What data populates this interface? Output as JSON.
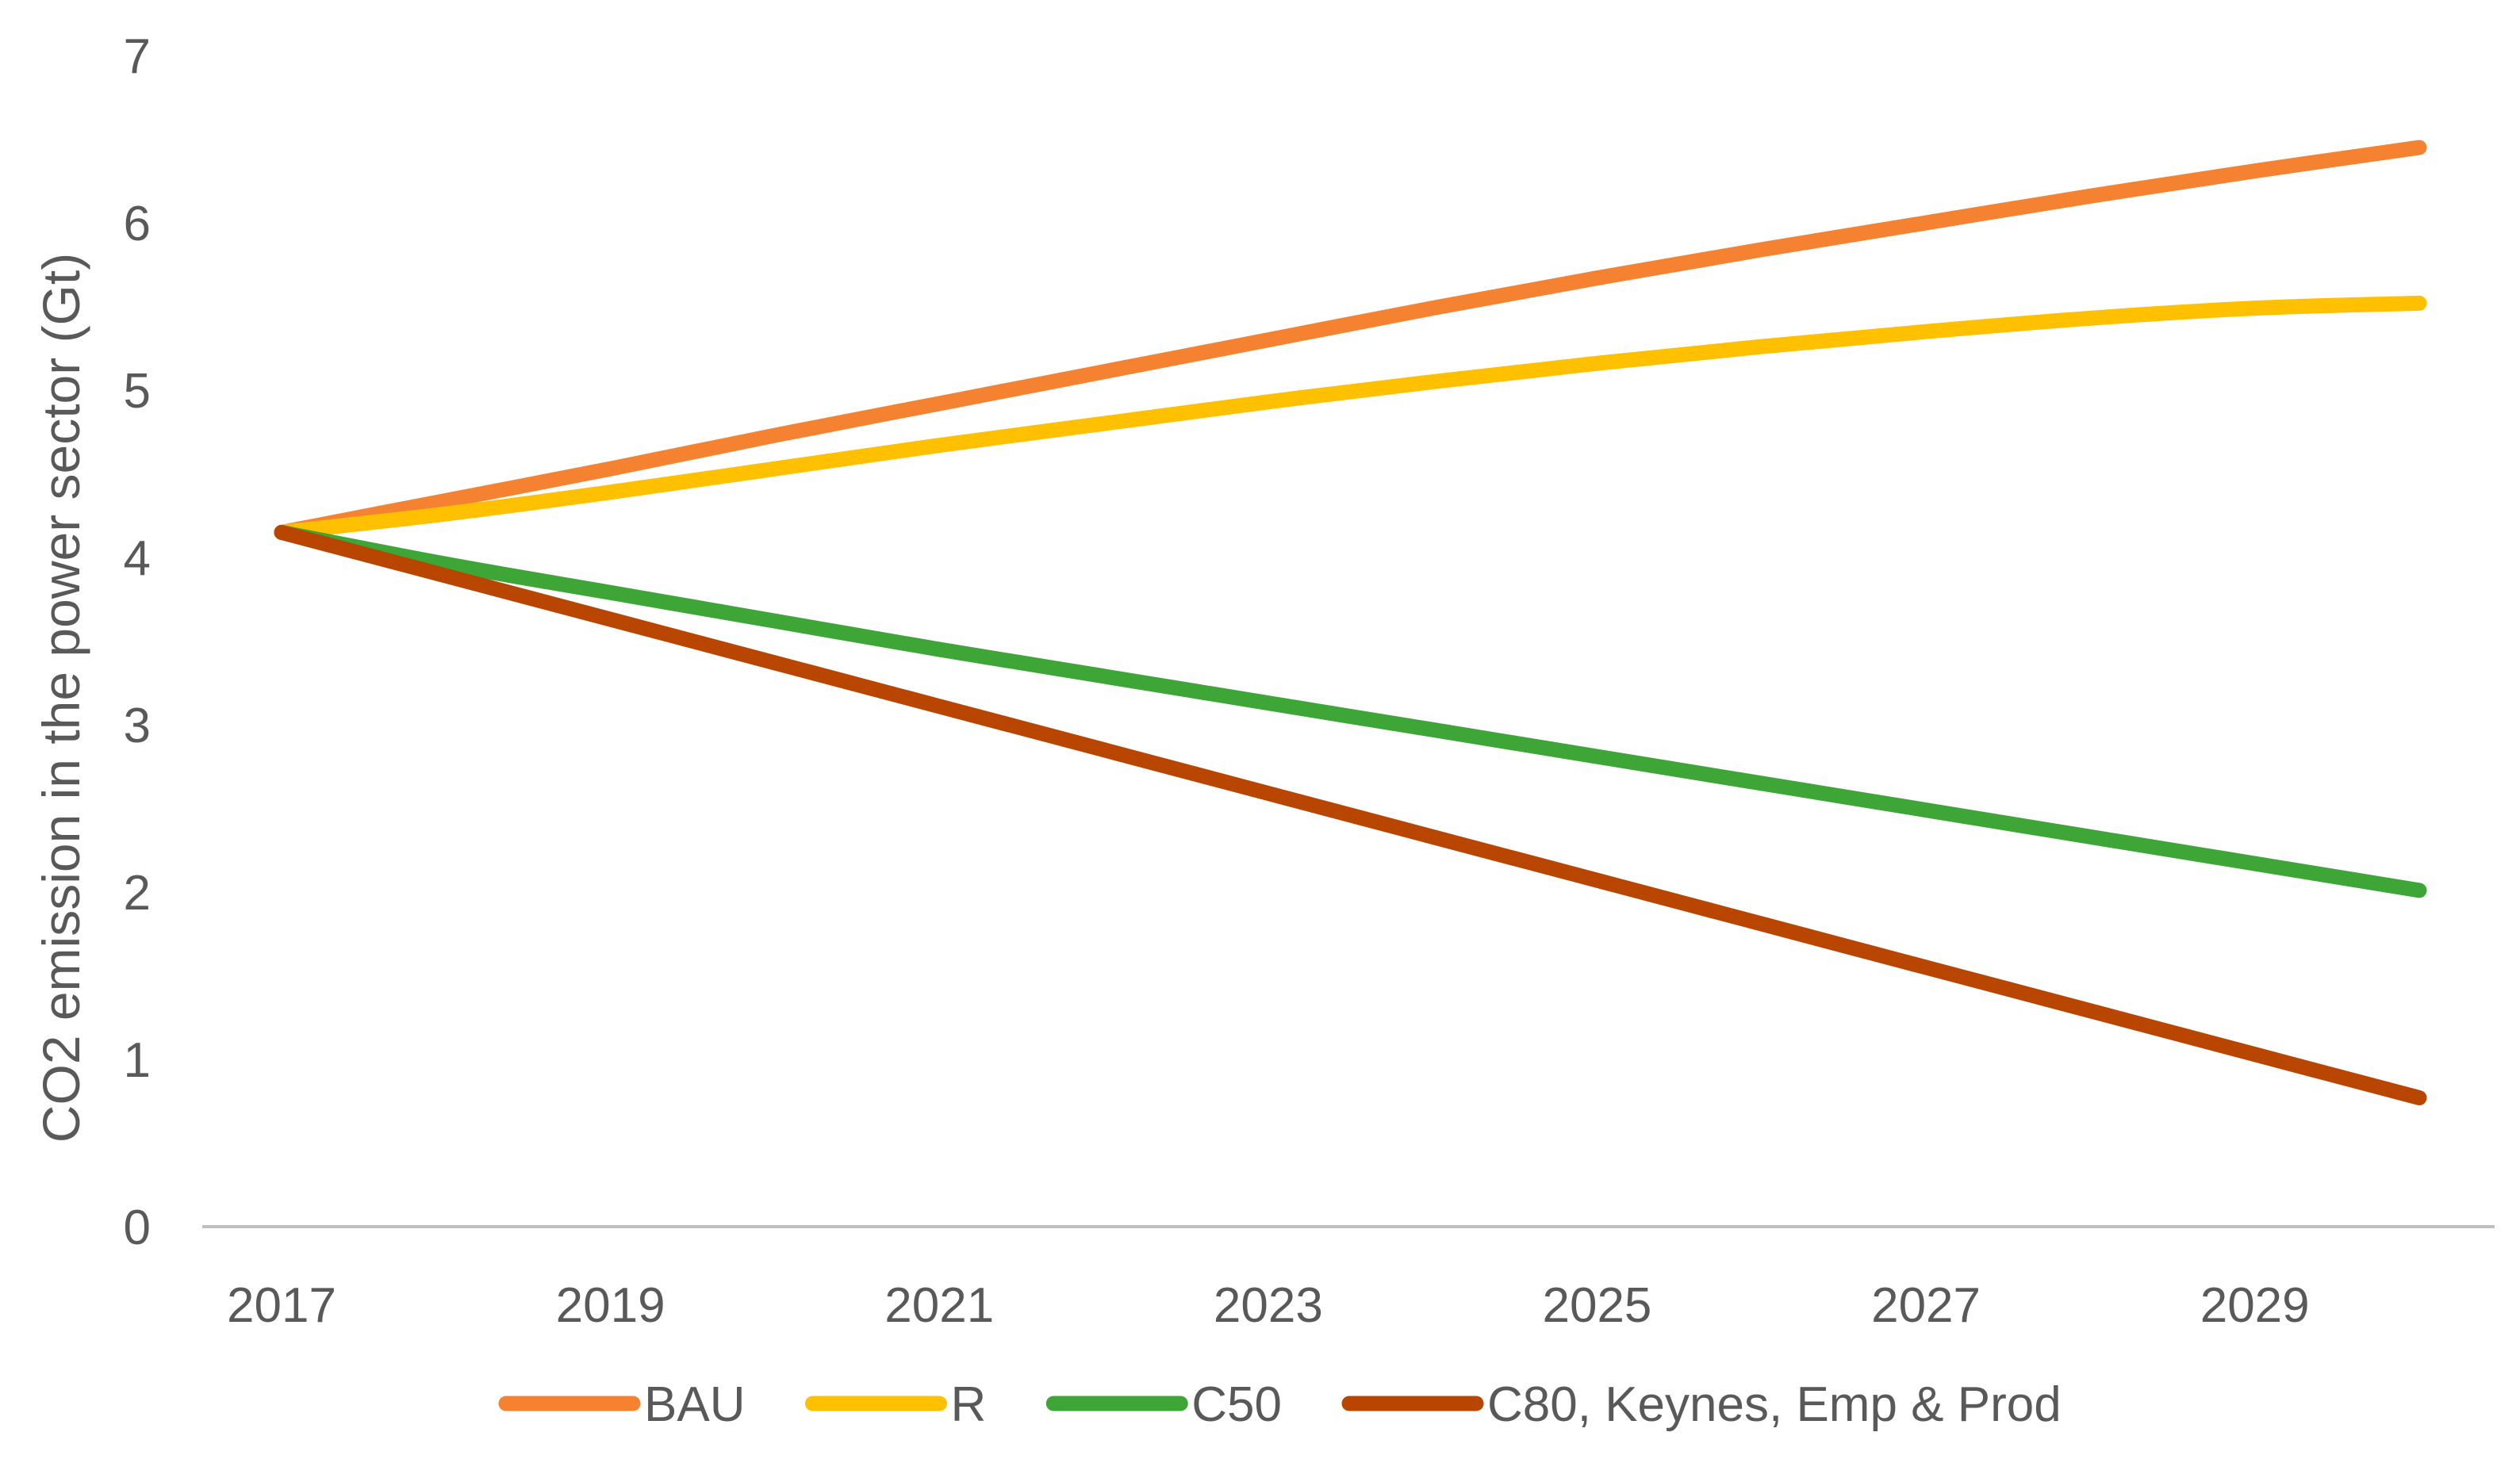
{
  "chart_data": {
    "type": "line",
    "title": "",
    "xlabel": "",
    "ylabel": "CO2 emission in the power sector (Gt)",
    "x": [
      2017,
      2018,
      2019,
      2020,
      2021,
      2022,
      2023,
      2024,
      2025,
      2026,
      2027,
      2028,
      2029,
      2030
    ],
    "x_ticks": [
      "2017",
      "2019",
      "2021",
      "2023",
      "2025",
      "2027",
      "2029"
    ],
    "y_ticks": [
      "0",
      "1",
      "2",
      "3",
      "4",
      "5",
      "6",
      "7"
    ],
    "xlim": [
      2017,
      2030
    ],
    "ylim": [
      0,
      7
    ],
    "grid": false,
    "legend_position": "bottom",
    "series": [
      {
        "name": "BAU",
        "color": "#F58231",
        "values": [
          4.15,
          4.34,
          4.53,
          4.73,
          4.92,
          5.11,
          5.3,
          5.49,
          5.67,
          5.84,
          6.0,
          6.16,
          6.31,
          6.45
        ]
      },
      {
        "name": "R",
        "color": "#FFC000",
        "values": [
          4.15,
          4.26,
          4.39,
          4.53,
          4.67,
          4.8,
          4.93,
          5.05,
          5.16,
          5.26,
          5.35,
          5.43,
          5.49,
          5.52
        ]
      },
      {
        "name": "C50",
        "color": "#3DA637",
        "values": [
          4.15,
          3.96,
          3.79,
          3.62,
          3.45,
          3.29,
          3.13,
          2.97,
          2.81,
          2.65,
          2.49,
          2.33,
          2.17,
          2.01
        ]
      },
      {
        "name": "C80, Keynes, Emp & Prod",
        "color": "#B84500",
        "values": [
          4.15,
          3.89,
          3.63,
          3.37,
          3.11,
          2.85,
          2.59,
          2.33,
          2.07,
          1.81,
          1.55,
          1.29,
          1.03,
          0.77
        ]
      }
    ]
  }
}
